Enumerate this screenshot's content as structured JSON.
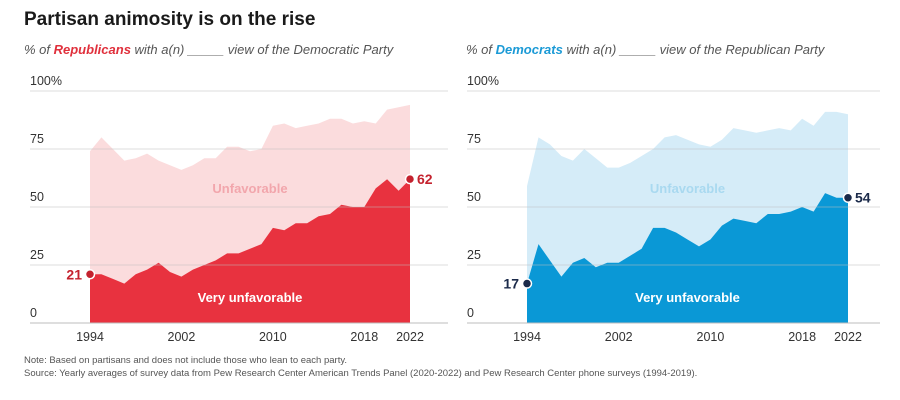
{
  "title": "Partisan animosity is on the rise",
  "subtitles": {
    "left": {
      "prefix": "% of ",
      "party": "Republicans",
      "suffix": " with a(n) _____ view of the Democratic Party"
    },
    "right": {
      "prefix": "% of ",
      "party": "Democrats",
      "suffix": " with a(n) _____ view of the Republican Party"
    }
  },
  "notes": {
    "note": "Note: Based on partisans and does not include those who lean to each party.",
    "source": "Source: Yearly averages of survey data from Pew Research Center American Trends Panel (2020-2022) and Pew Research Center phone surveys (1994-2019)."
  },
  "colors": {
    "rep_dark": "#e8323f",
    "rep_light": "#fbdcdd",
    "rep_label_light": "#f2a6ac",
    "rep_end": "#c4222e",
    "dem_dark": "#0a98d6",
    "dem_light": "#d5ecf8",
    "dem_label_light": "#a9d9f0",
    "dem_end": "#1b2a4a",
    "grid": "#bdbdbd"
  },
  "chart_data": [
    {
      "type": "area",
      "name": "republicans",
      "x": [
        1994,
        1995,
        1996,
        1997,
        1998,
        1999,
        2000,
        2001,
        2002,
        2003,
        2004,
        2005,
        2006,
        2007,
        2008,
        2009,
        2010,
        2011,
        2012,
        2013,
        2014,
        2015,
        2016,
        2017,
        2018,
        2019,
        2020,
        2021,
        2022
      ],
      "series": [
        {
          "name": "Unfavorable",
          "values": [
            74,
            80,
            75,
            70,
            71,
            73,
            70,
            68,
            66,
            68,
            71,
            71,
            76,
            76,
            74,
            75,
            85,
            86,
            84,
            85,
            86,
            88,
            88,
            86,
            87,
            86,
            92,
            93,
            94
          ]
        },
        {
          "name": "Very unfavorable",
          "values": [
            21,
            21,
            19,
            17,
            21,
            23,
            26,
            22,
            20,
            23,
            25,
            27,
            30,
            30,
            32,
            34,
            41,
            40,
            43,
            43,
            46,
            47,
            51,
            50,
            50,
            58,
            62,
            57,
            62
          ]
        }
      ],
      "xticks": [
        1994,
        2002,
        2010,
        2018,
        2022
      ],
      "yticks": [
        0,
        25,
        50,
        75,
        100
      ],
      "ytick_labels": [
        "0",
        "25",
        "50",
        "75",
        "100%"
      ],
      "ylim": [
        0,
        100
      ],
      "start_label": "21",
      "end_label": "62"
    },
    {
      "type": "area",
      "name": "democrats",
      "x": [
        1994,
        1995,
        1996,
        1997,
        1998,
        1999,
        2000,
        2001,
        2002,
        2003,
        2004,
        2005,
        2006,
        2007,
        2008,
        2009,
        2010,
        2011,
        2012,
        2013,
        2014,
        2015,
        2016,
        2017,
        2018,
        2019,
        2020,
        2021,
        2022
      ],
      "series": [
        {
          "name": "Unfavorable",
          "values": [
            59,
            80,
            77,
            72,
            70,
            75,
            71,
            67,
            67,
            69,
            72,
            75,
            80,
            81,
            79,
            77,
            76,
            79,
            84,
            83,
            82,
            83,
            84,
            83,
            88,
            85,
            91,
            91,
            90
          ]
        },
        {
          "name": "Very unfavorable",
          "values": [
            17,
            34,
            27,
            20,
            26,
            28,
            24,
            26,
            26,
            29,
            32,
            41,
            41,
            39,
            36,
            33,
            36,
            42,
            45,
            44,
            43,
            47,
            47,
            48,
            50,
            48,
            56,
            54,
            54
          ]
        }
      ],
      "xticks": [
        1994,
        2002,
        2010,
        2018,
        2022
      ],
      "yticks": [
        0,
        25,
        50,
        75,
        100
      ],
      "ytick_labels": [
        "0",
        "25",
        "50",
        "75",
        "100%"
      ],
      "ylim": [
        0,
        100
      ],
      "start_label": "17",
      "end_label": "54"
    }
  ]
}
